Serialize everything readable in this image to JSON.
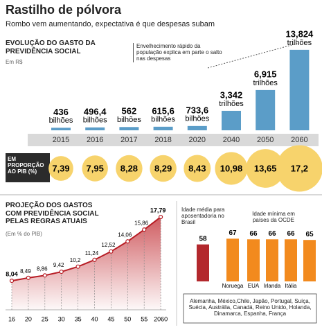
{
  "header": {
    "title": "Rastilho de pólvora",
    "subtitle": "Rombo vem aumentando, expectativa é que despesas subam"
  },
  "chart_data": [
    {
      "type": "bar",
      "title": "EVOLUÇÃO DO GASTO DA PREVIDÊNCIA SOCIAL",
      "subtitle": "Em R$",
      "annotation": "Envelhecimento rápido da população explica em parte o salto nas despesas",
      "categories": [
        "2015",
        "2016",
        "2017",
        "2018",
        "2020",
        "2040",
        "2050",
        "2060"
      ],
      "values": [
        436,
        496.4,
        562,
        615.6,
        733.6,
        3342,
        6915,
        13824
      ],
      "value_labels": [
        "436",
        "496,4",
        "562",
        "615,6",
        "733,6",
        "3,342",
        "6,915",
        "13,824"
      ],
      "value_units": [
        "bilhões",
        "bilhões",
        "bilhões",
        "bilhões",
        "bilhões",
        "trilhões",
        "trilhões",
        "trilhões"
      ],
      "color": "#5b9dc8"
    },
    {
      "type": "bubble",
      "title": "EM PROPORÇÃO AO PIB (%)",
      "values": [
        7.39,
        7.95,
        8.28,
        8.29,
        8.43,
        10.98,
        13.65,
        17.2
      ],
      "value_labels": [
        "7,39",
        "7,95",
        "8,28",
        "8,29",
        "8,43",
        "10,98",
        "13,65",
        "17,2"
      ],
      "color": "#f7d36c"
    },
    {
      "type": "area",
      "title": "PROJEÇÃO DOS GASTOS COM PREVIDÊNCIA SOCIAL PELAS REGRAS ATUAIS",
      "subtitle": "(Em % do PIB)",
      "categories": [
        "16",
        "20",
        "25",
        "30",
        "35",
        "40",
        "45",
        "50",
        "55",
        "2060"
      ],
      "values": [
        8.04,
        8.49,
        8.86,
        9.42,
        10.2,
        11.24,
        12.52,
        14.06,
        15.86,
        17.79
      ],
      "value_labels": [
        "8,04",
        "8,49",
        "8,86",
        "9,42",
        "10,2",
        "11,24",
        "12,52",
        "14,06",
        "15,86",
        "17,79"
      ],
      "color": "#b71c24"
    },
    {
      "type": "bar",
      "groups": [
        "Idade média para aposentadoria no Brasil",
        "Idade mínima em países da OCDE"
      ],
      "categories": [
        null,
        "Noruega",
        "EUA",
        "Irlanda",
        "Itália",
        null
      ],
      "values": [
        58,
        67,
        66,
        66,
        66,
        65
      ],
      "colors": [
        "#b3282d",
        "#f28a1e",
        "#f28a1e",
        "#f28a1e",
        "#f28a1e",
        "#f28a1e"
      ],
      "note": "Alemanha, México,Chile, Japão, Portugal, Suíça, Suécia, Austrália, Canadá, Reino Unido, Holanda, Dinamarca, Espanha, França"
    }
  ]
}
